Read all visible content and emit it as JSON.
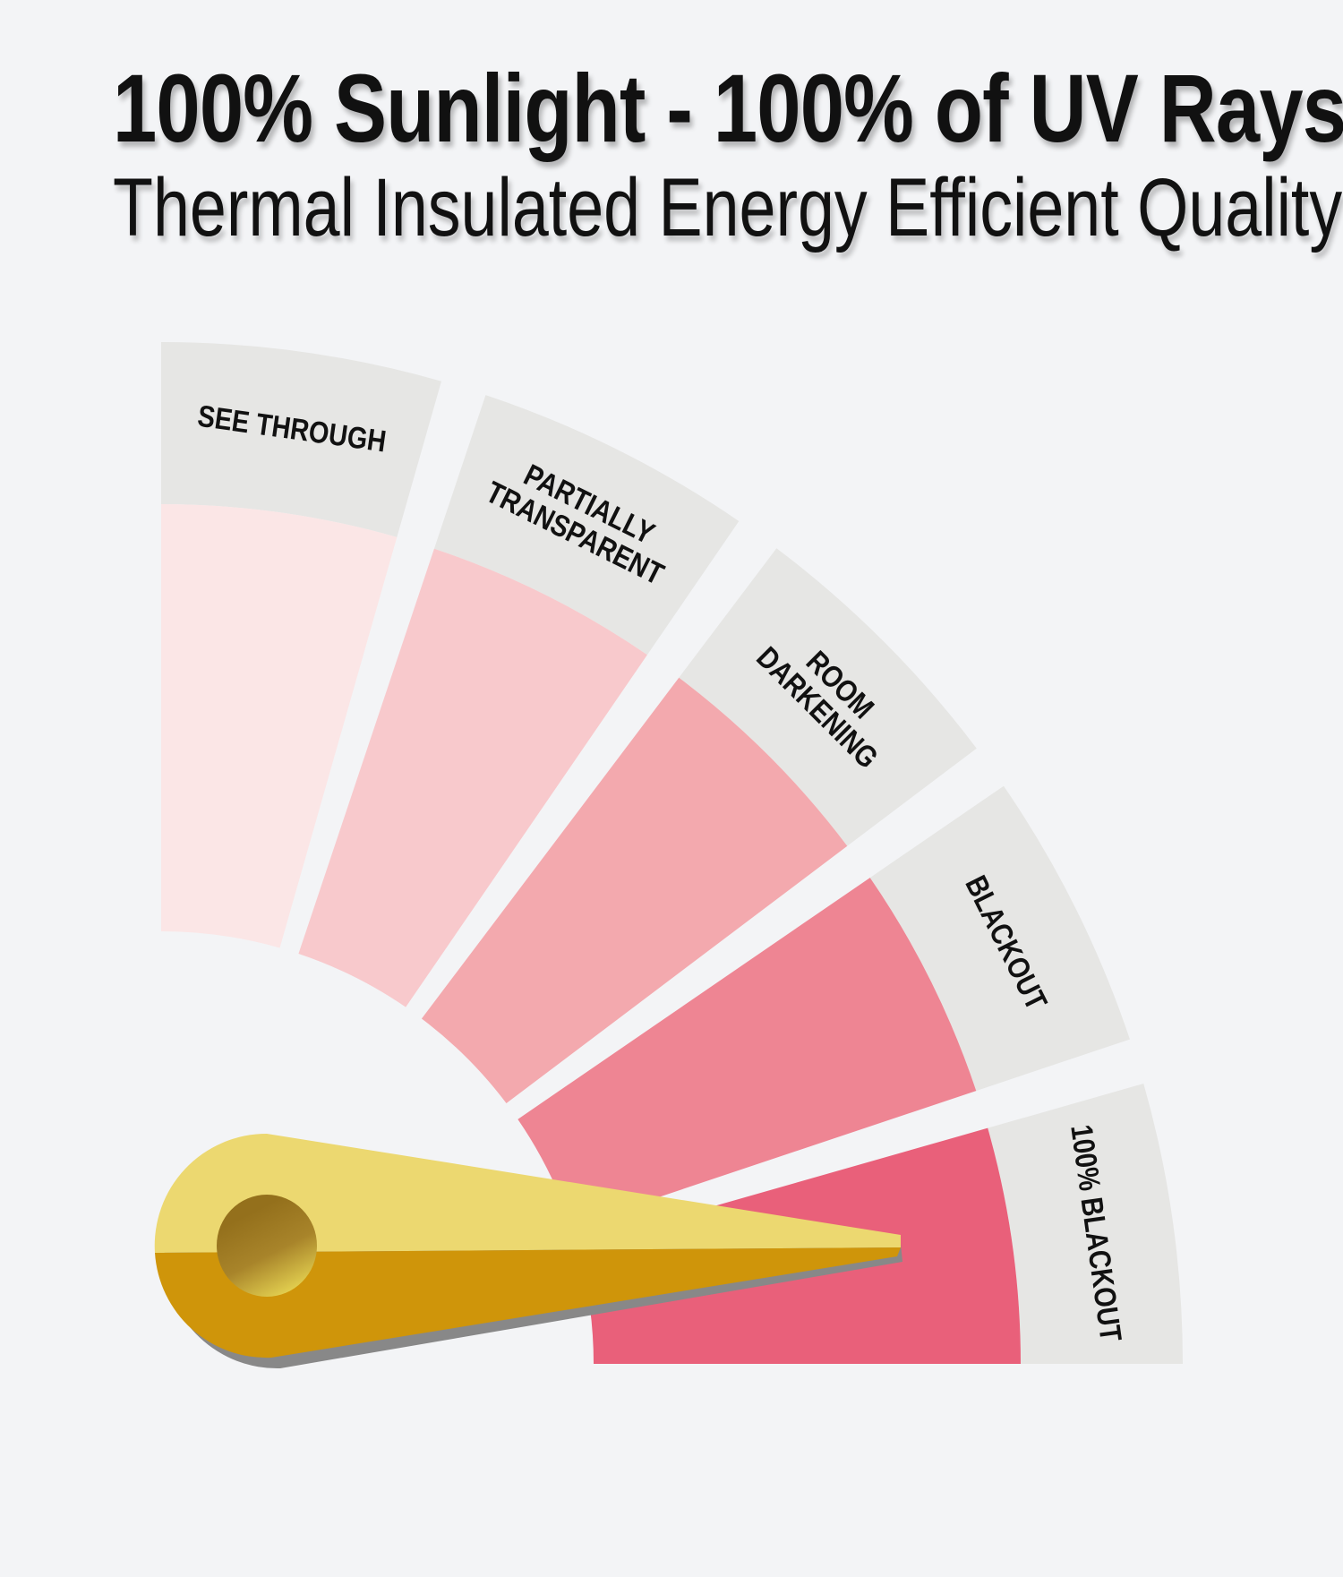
{
  "title": "100% Sunlight - 100% of UV Rays",
  "subtitle": "Thermal Insulated Energy Efficient Quality",
  "gauge": {
    "band_color": "#e6e6e4",
    "segments": [
      {
        "lines": [
          "SEE THROUGH"
        ],
        "color": "#fbe6e6"
      },
      {
        "lines": [
          "PARTIALLY",
          "TRANSPARENT"
        ],
        "color": "#f8c9cc"
      },
      {
        "lines": [
          "ROOM",
          "DARKENING"
        ],
        "color": "#f3a9ae"
      },
      {
        "lines": [
          "BLACKOUT"
        ],
        "color": "#ee8593"
      },
      {
        "lines": [
          "100% BLACKOUT"
        ],
        "color": "#e9607a"
      }
    ],
    "needle_points_to": "100% BLACKOUT",
    "needle_colors": {
      "light": "#ecd870",
      "dark": "#cf950a",
      "shadow": "#888888"
    }
  }
}
